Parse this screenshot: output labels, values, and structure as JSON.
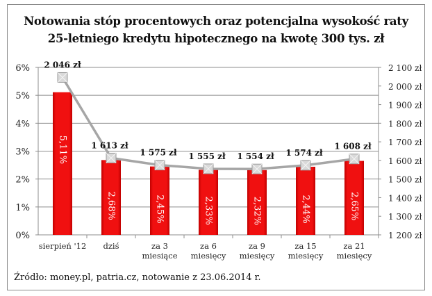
{
  "chart_data": {
    "type": "bar+line",
    "title": "Notowania stóp procentowych oraz potencjalna wysokość raty 25-letniego kredytu hipotecznego na kwotę 300 tys. zł",
    "categories": [
      "sierpień '12",
      "dziś",
      "za 3 miesiące",
      "za 6 miesięcy",
      "za 9 miesięcy",
      "za 15 miesięcy",
      "za 21 miesięcy"
    ],
    "series": [
      {
        "type": "bar",
        "axis": "left",
        "values": [
          5.11,
          2.68,
          2.45,
          2.33,
          2.32,
          2.44,
          2.65
        ],
        "labels": [
          "5,11%",
          "2,68%",
          "2,45%",
          "2,33%",
          "2,32%",
          "2,44%",
          "2,65%"
        ],
        "color": "#e30613"
      },
      {
        "type": "line",
        "axis": "right",
        "values": [
          2046,
          1613,
          1575,
          1555,
          1554,
          1574,
          1608
        ],
        "labels": [
          "2 046 zł",
          "1 613 zł",
          "1 575 zł",
          "1 555 zł",
          "1 554 zł",
          "1 574 zł",
          "1 608 zł"
        ],
        "color": "#a6a6a6"
      }
    ],
    "ylim_left": [
      0,
      6
    ],
    "yticks_left": [
      "0%",
      "1%",
      "2%",
      "3%",
      "4%",
      "5%",
      "6%"
    ],
    "ylim_right": [
      1200,
      2100
    ],
    "yticks_right": [
      "1 200 zł",
      "1 300 zł",
      "1 400 zł",
      "1 500 zł",
      "1 600 zł",
      "1 700 zł",
      "1 800 zł",
      "1 900 zł",
      "2 000 zł",
      "2 100 zł"
    ],
    "grid": true
  },
  "source": "Źródło: money.pl, patria.cz, notowanie z 23.06.2014 r."
}
